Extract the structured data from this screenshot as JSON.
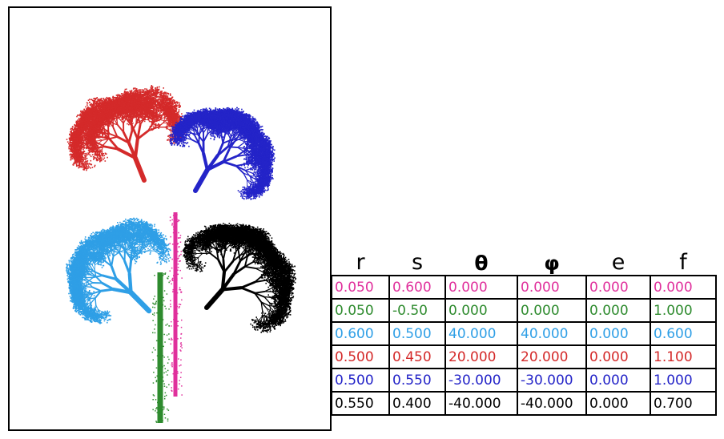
{
  "table": {
    "headers": [
      "r",
      "s",
      "θ",
      "φ",
      "e",
      "f"
    ],
    "rows": [
      {
        "color": "#e0309c",
        "cells": [
          "0.050",
          "0.600",
          "0.000",
          "0.000",
          "0.000",
          "0.000"
        ]
      },
      {
        "color": "#2e8b2e",
        "cells": [
          "0.050",
          "-0.50",
          "0.000",
          "0.000",
          "0.000",
          "1.000"
        ]
      },
      {
        "color": "#2f9fe6",
        "cells": [
          "0.600",
          "0.500",
          "40.000",
          "40.000",
          "0.000",
          "0.600"
        ]
      },
      {
        "color": "#d42a2a",
        "cells": [
          "0.500",
          "0.450",
          "20.000",
          "20.000",
          "0.000",
          "1.100"
        ]
      },
      {
        "color": "#2424c8",
        "cells": [
          "0.500",
          "0.550",
          "-30.000",
          "-30.000",
          "0.000",
          "1.000"
        ]
      },
      {
        "color": "#000000",
        "cells": [
          "0.550",
          "0.400",
          "-40.000",
          "-40.000",
          "0.000",
          "0.700"
        ]
      }
    ]
  },
  "trees": [
    {
      "name": "red-tree",
      "color": "#d42a2a"
    },
    {
      "name": "blue-tree",
      "color": "#2424c8"
    },
    {
      "name": "light-blue-tree",
      "color": "#2f9fe6"
    },
    {
      "name": "black-tree",
      "color": "#000000"
    },
    {
      "name": "magenta-stem",
      "color": "#e0309c"
    },
    {
      "name": "green-stem",
      "color": "#2e8b2e"
    }
  ]
}
